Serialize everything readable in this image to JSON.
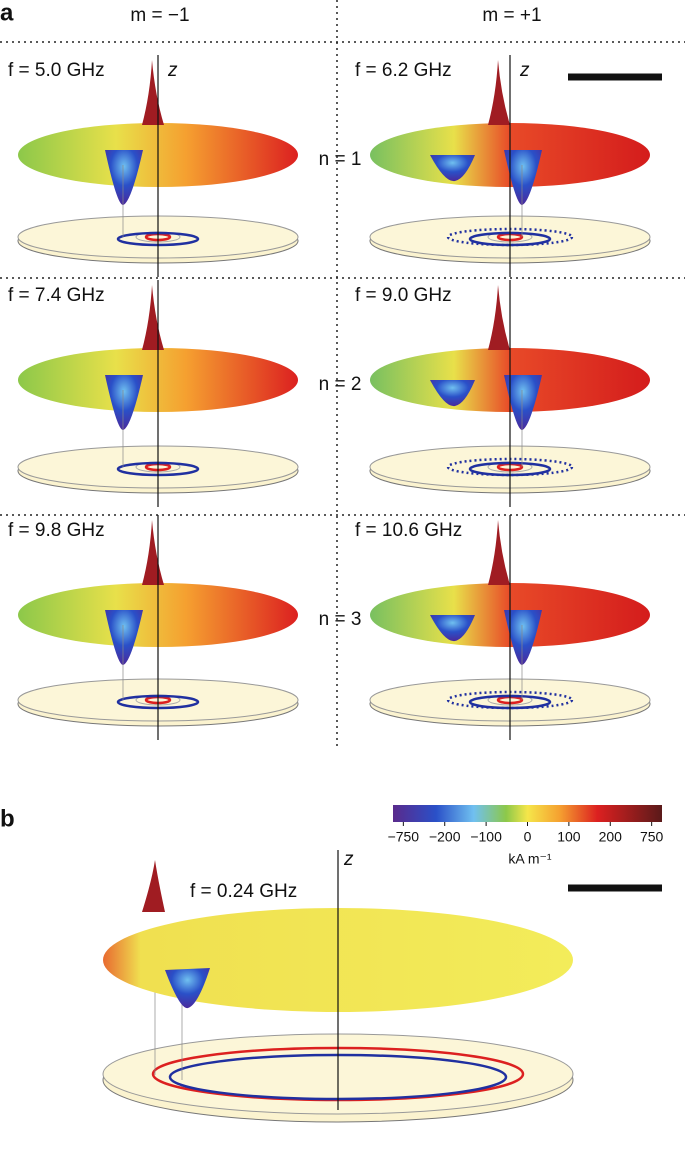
{
  "panel_a": {
    "label": "a",
    "columns": [
      "m = −1",
      "m = +1"
    ],
    "axis_label": "z",
    "rows": [
      {
        "n": "n = 1",
        "cells": [
          "f = 5.0 GHz",
          "f = 6.2 GHz"
        ]
      },
      {
        "n": "n = 2",
        "cells": [
          "f = 7.4 GHz",
          "f = 9.0 GHz"
        ]
      },
      {
        "n": "n = 3",
        "cells": [
          "f = 9.8 GHz",
          "f = 10.6 GHz"
        ]
      }
    ]
  },
  "panel_b": {
    "label": "b",
    "frequency": "f = 0.24 GHz",
    "axis_label": "z",
    "colorbar": {
      "ticks": [
        "−750",
        "−200",
        "−100",
        "0",
        "100",
        "200",
        "750"
      ],
      "unit": "kA m⁻¹"
    }
  }
}
